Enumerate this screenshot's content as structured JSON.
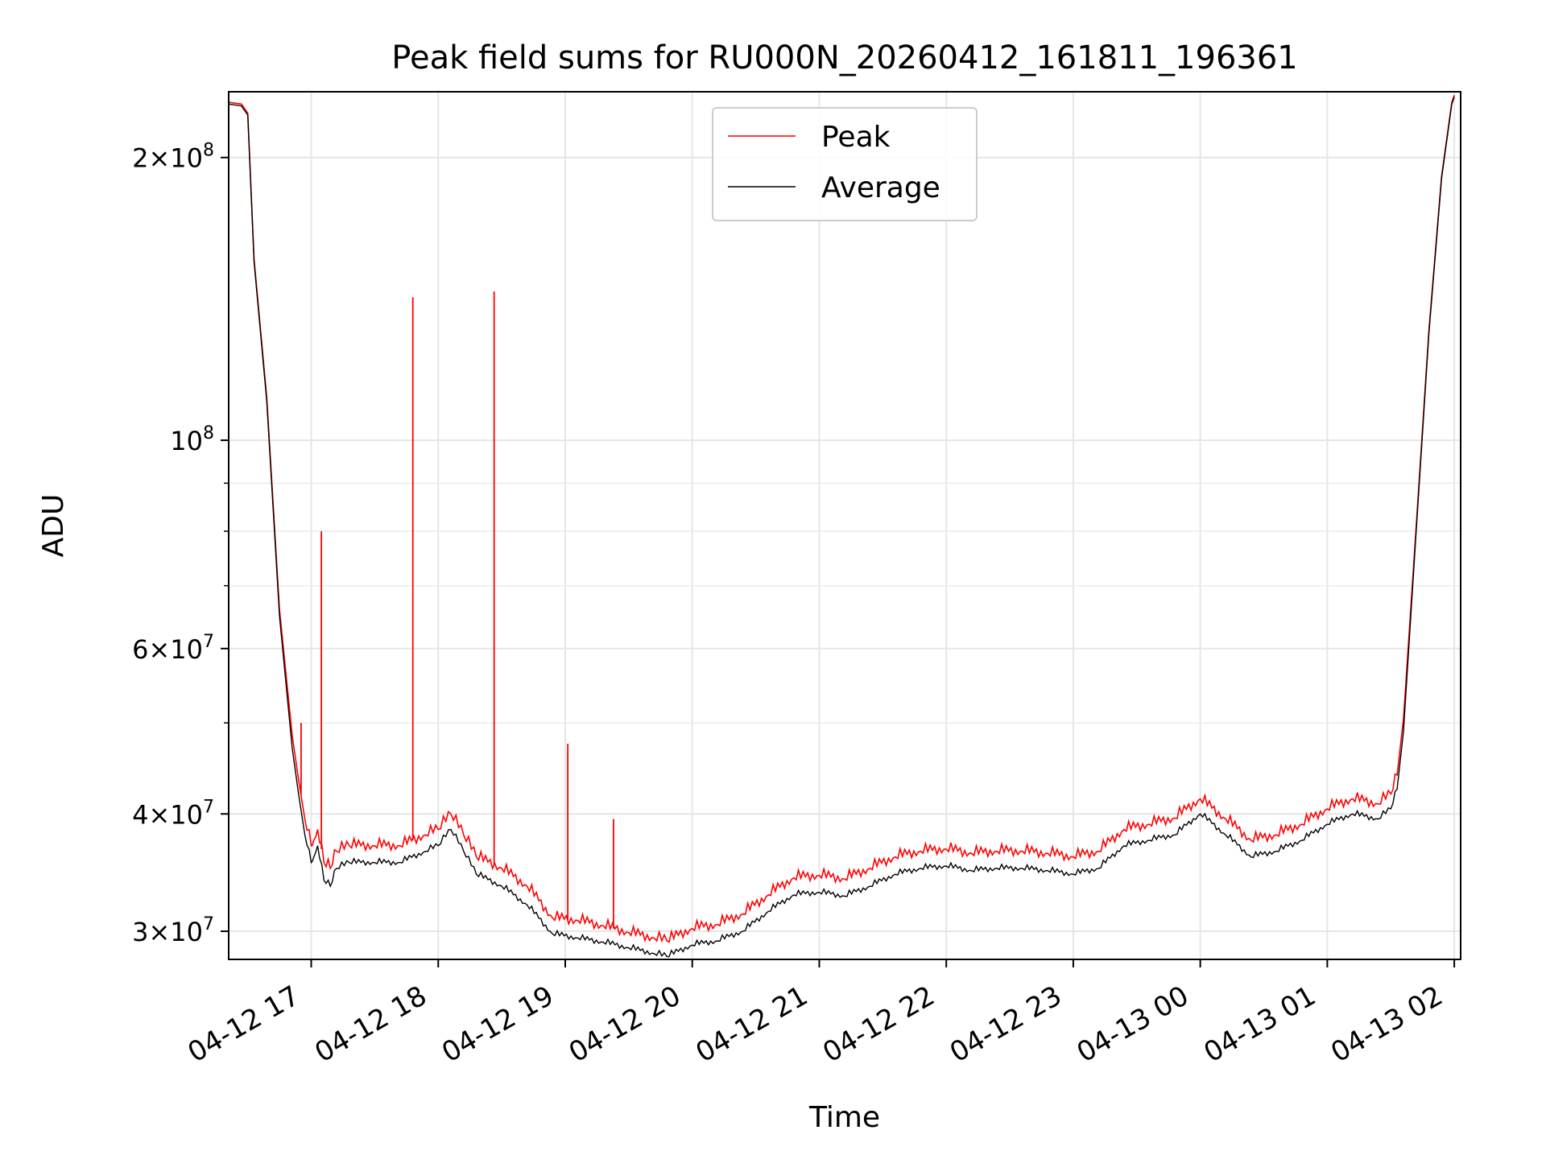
{
  "chart_data": {
    "type": "line",
    "title": "Peak field sums for RU000N_20260412_161811_196361",
    "xlabel": "Time",
    "ylabel": "ADU",
    "y_scale": "log",
    "grid": true,
    "legend_position": "top-center",
    "xlim_hours": [
      16.35,
      26.05
    ],
    "ylim": [
      28000000,
      235000000
    ],
    "x_unit": "hours since 2026-04-12 00:00",
    "x_ticks": [
      {
        "value": 17,
        "label": "04-12 17"
      },
      {
        "value": 18,
        "label": "04-12 18"
      },
      {
        "value": 19,
        "label": "04-12 19"
      },
      {
        "value": 20,
        "label": "04-12 20"
      },
      {
        "value": 21,
        "label": "04-12 21"
      },
      {
        "value": 22,
        "label": "04-12 22"
      },
      {
        "value": 23,
        "label": "04-12 23"
      },
      {
        "value": 24,
        "label": "04-13 00"
      },
      {
        "value": 25,
        "label": "04-13 01"
      },
      {
        "value": 26,
        "label": "04-13 02"
      }
    ],
    "y_major_ticks": [
      {
        "value": 30000000,
        "mantissa": "3",
        "exponent": "7"
      },
      {
        "value": 40000000,
        "mantissa": "4",
        "exponent": "7"
      },
      {
        "value": 60000000,
        "mantissa": "6",
        "exponent": "7"
      },
      {
        "value": 100000000,
        "mantissa": "",
        "exponent": "8"
      },
      {
        "value": 200000000,
        "mantissa": "2",
        "exponent": "8"
      }
    ],
    "y_minor_ticks": [
      50000000,
      70000000,
      80000000,
      90000000
    ],
    "legend": [
      {
        "name": "Peak",
        "color": "#ff0000"
      },
      {
        "name": "Average",
        "color": "#000000"
      }
    ],
    "series": [
      {
        "name": "Average",
        "color": "#000000",
        "x": [
          16.35,
          16.45,
          16.5,
          16.55,
          16.65,
          16.75,
          16.85,
          16.9,
          16.95,
          17.0,
          17.02,
          17.05,
          17.1,
          17.15,
          17.2,
          17.3,
          17.5,
          17.7,
          17.9,
          18.0,
          18.1,
          18.2,
          18.3,
          18.5,
          18.7,
          18.9,
          19.1,
          19.3,
          19.5,
          19.7,
          19.8,
          20.0,
          20.2,
          20.4,
          20.6,
          20.8,
          21.0,
          21.2,
          21.4,
          21.6,
          21.8,
          22.0,
          22.2,
          22.4,
          22.6,
          22.8,
          23.0,
          23.2,
          23.4,
          23.6,
          23.8,
          24.0,
          24.2,
          24.4,
          24.6,
          24.8,
          25.0,
          25.2,
          25.4,
          25.5,
          25.55,
          25.6,
          25.7,
          25.8,
          25.9,
          25.98,
          26.0
        ],
        "y": [
          228000000,
          227000000,
          222000000,
          155000000,
          110000000,
          65000000,
          47000000,
          42000000,
          38000000,
          35500000,
          36000000,
          37000000,
          34000000,
          33500000,
          35000000,
          35500000,
          35500000,
          35500000,
          36500000,
          37000000,
          38500000,
          36500000,
          34500000,
          33500000,
          32000000,
          29800000,
          29500000,
          29200000,
          28800000,
          28400000,
          28200000,
          29000000,
          29300000,
          30000000,
          31500000,
          32800000,
          33000000,
          32700000,
          33500000,
          34500000,
          35000000,
          35200000,
          34800000,
          35000000,
          35000000,
          34800000,
          34500000,
          35000000,
          37000000,
          37500000,
          38000000,
          40000000,
          38000000,
          36000000,
          36500000,
          37500000,
          39000000,
          40000000,
          39500000,
          40500000,
          42500000,
          49000000,
          80000000,
          130000000,
          190000000,
          228000000,
          232000000
        ]
      },
      {
        "name": "Peak",
        "color": "#ff0000",
        "x": [
          16.35,
          16.45,
          16.5,
          16.55,
          16.65,
          16.75,
          16.85,
          16.9,
          16.95,
          17.0,
          17.02,
          17.05,
          17.1,
          17.15,
          17.2,
          17.3,
          17.5,
          17.7,
          17.9,
          18.0,
          18.1,
          18.2,
          18.3,
          18.5,
          18.7,
          18.9,
          19.1,
          19.3,
          19.5,
          19.7,
          19.8,
          20.0,
          20.2,
          20.4,
          20.6,
          20.8,
          21.0,
          21.2,
          21.4,
          21.6,
          21.8,
          22.0,
          22.2,
          22.4,
          22.6,
          22.8,
          23.0,
          23.2,
          23.4,
          23.6,
          23.8,
          24.0,
          24.2,
          24.4,
          24.6,
          24.8,
          25.0,
          25.2,
          25.4,
          25.5,
          25.55,
          25.6,
          25.7,
          25.8,
          25.9,
          25.98,
          26.0
        ],
        "y": [
          229000000,
          228000000,
          223000000,
          156000000,
          111000000,
          66000000,
          48500000,
          43500000,
          39500000,
          37000000,
          37500000,
          38500000,
          35500000,
          35000000,
          36500000,
          37000000,
          37000000,
          37000000,
          38000000,
          38500000,
          40000000,
          38000000,
          36000000,
          35000000,
          33500000,
          31000000,
          30800000,
          30400000,
          29900000,
          29500000,
          29300000,
          30200000,
          30500000,
          31300000,
          32800000,
          34200000,
          34400000,
          34100000,
          35000000,
          36000000,
          36500000,
          36700000,
          36300000,
          36500000,
          36500000,
          36300000,
          36000000,
          36500000,
          38500000,
          39000000,
          39600000,
          41500000,
          39500000,
          37500000,
          38000000,
          39000000,
          40500000,
          41500000,
          41000000,
          42000000,
          44000000,
          50500000,
          81000000,
          131000000,
          191000000,
          229000000,
          233000000
        ]
      }
    ],
    "peak_spikes": [
      {
        "x": 16.92,
        "y": 50000000
      },
      {
        "x": 17.08,
        "y": 80000000
      },
      {
        "x": 17.8,
        "y": 142000000
      },
      {
        "x": 18.44,
        "y": 144000000
      },
      {
        "x": 19.02,
        "y": 47500000
      },
      {
        "x": 19.38,
        "y": 39500000
      }
    ]
  }
}
